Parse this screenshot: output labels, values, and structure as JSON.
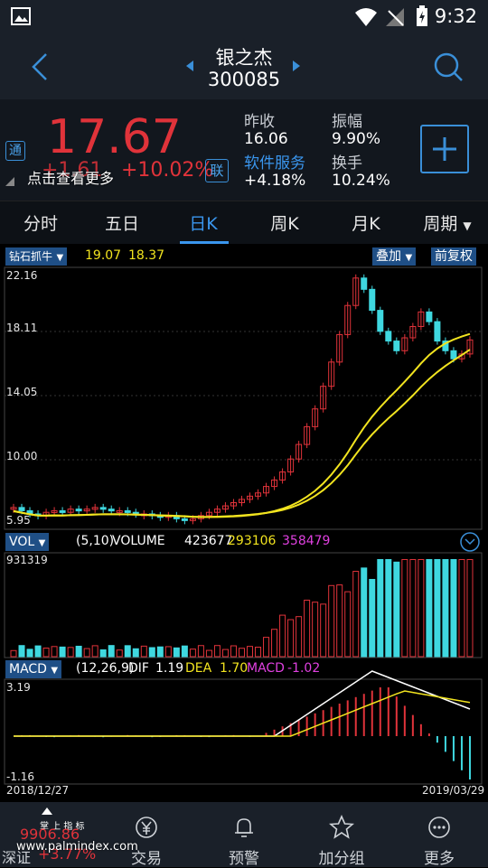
{
  "status": {
    "time": "9:32"
  },
  "header": {
    "stock_name": "银之杰",
    "stock_code": "300085"
  },
  "quote": {
    "price": "17.67",
    "change": "+1.61",
    "change_pct": "+10.02%",
    "tag_tong": "通",
    "tag_lian": "联",
    "hint": "点击查看更多",
    "prev_close_label": "昨收",
    "prev_close": "16.06",
    "amplitude_label": "振幅",
    "amplitude": "9.90%",
    "sector_label": "软件服务",
    "sector_change": "+4.18%",
    "turnover_label": "换手",
    "turnover": "10.24%"
  },
  "tabs": [
    "分时",
    "五日",
    "日K",
    "周K",
    "月K",
    "周期"
  ],
  "active_tab": "日K",
  "kline": {
    "indicator": "钻石抓牛",
    "v1": "19.07",
    "v2": "18.37",
    "overlay_label": "叠加",
    "adjust_label": "前复权",
    "y_labels": [
      "22.16",
      "18.11",
      "14.05",
      "10.00",
      "5.95"
    ]
  },
  "volume": {
    "indicator": "VOL",
    "params": "(5,10)",
    "label": "VOLUME",
    "value": "423677",
    "ma5": "293106",
    "ma10": "358479",
    "max": "931319"
  },
  "macd": {
    "indicator": "MACD",
    "params": "(12,26,9)",
    "dif_label": "DIF",
    "dif": "1.19",
    "dea_label": "DEA",
    "dea": "1.70",
    "macd_label": "MACD",
    "macd": "-1.02",
    "top": "3.19",
    "bottom": "-1.16"
  },
  "dates": {
    "start": "2018/12/27",
    "end": "2019/03/29"
  },
  "bottom_nav": {
    "index_value": "9906.86",
    "index_name": "深证",
    "index_change": "+3.77%",
    "watermark": "掌 上 指 标",
    "site": "www.palmindex.com",
    "items": [
      "交易",
      "预警",
      "加分组",
      "更多"
    ]
  },
  "colors": {
    "up": "#e0333a",
    "down": "#3fd8e0",
    "accent": "#3a96ee",
    "yellow": "#f2e41f",
    "magenta": "#e040e0"
  }
}
